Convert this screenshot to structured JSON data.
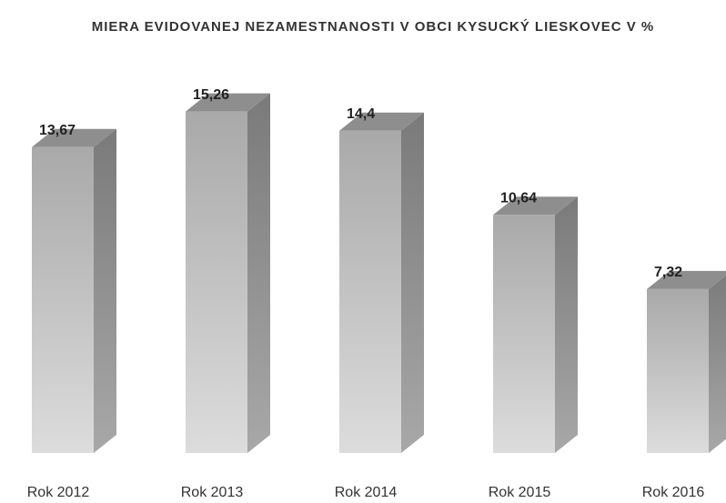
{
  "chart_data": {
    "type": "bar3d",
    "title": "MIERA EVIDOVANEJ NEZAMESTNANOSTI V OBCI KYSUCKÝ LIESKOVEC V %",
    "categories": [
      "Rok 2012",
      "Rok 2013",
      "Rok 2014",
      "Rok 2015",
      "Rok 2016"
    ],
    "values": [
      13.67,
      15.26,
      14.4,
      10.64,
      7.32
    ],
    "value_labels": [
      "13,67",
      "15,26",
      "14,4",
      "10,64",
      "7,32"
    ],
    "color": "#b8b8b8"
  }
}
